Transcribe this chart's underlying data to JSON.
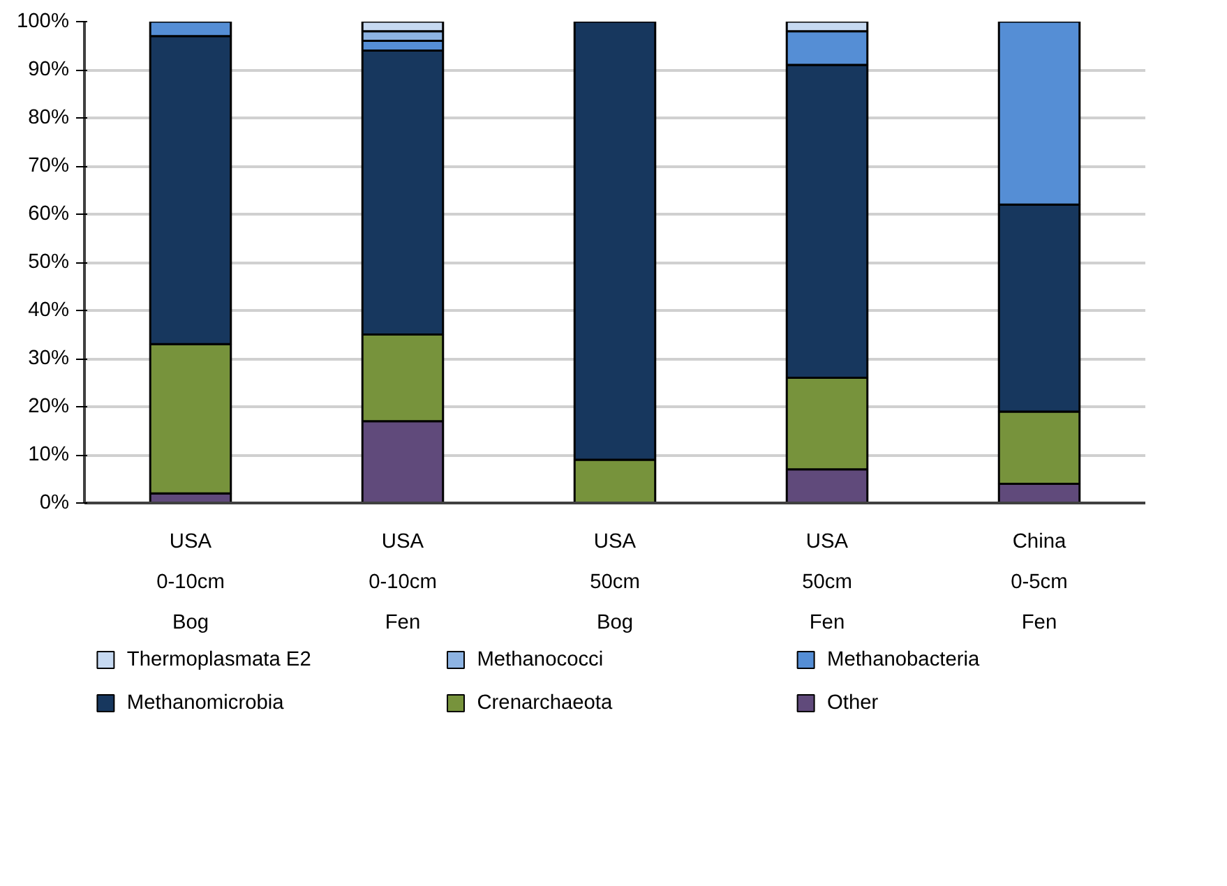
{
  "chart_data": {
    "type": "bar",
    "stacked": true,
    "categories": [
      "USA\n0-10cm\nBog",
      "USA\n0-10cm\nFen",
      "USA\n50cm\nBog",
      "USA\n50cm\nFen",
      "China\n0-5cm\nFen"
    ],
    "series": [
      {
        "name": "Other",
        "color": "#604a7b",
        "values": [
          2,
          17,
          0,
          7,
          4
        ]
      },
      {
        "name": "Crenarchaeota",
        "color": "#77933c",
        "values": [
          31,
          18,
          9,
          19,
          15
        ]
      },
      {
        "name": "Methanomicrobia",
        "color": "#17375e",
        "values": [
          64,
          59,
          91,
          65,
          43
        ]
      },
      {
        "name": "Methanobacteria",
        "color": "#558ed5",
        "values": [
          3,
          2,
          0,
          7,
          38
        ]
      },
      {
        "name": "Methanococci",
        "color": "#8db3e2",
        "values": [
          0,
          2,
          0,
          0,
          0
        ]
      },
      {
        "name": "Thermoplasmata E2",
        "color": "#c6d9f1",
        "values": [
          0,
          2,
          0,
          2,
          0
        ]
      }
    ],
    "ylim": [
      0,
      100
    ],
    "yticks": [
      {
        "value": 0,
        "label": "0%"
      },
      {
        "value": 10,
        "label": "10%"
      },
      {
        "value": 20,
        "label": "20%"
      },
      {
        "value": 30,
        "label": "30%"
      },
      {
        "value": 40,
        "label": "40%"
      },
      {
        "value": 50,
        "label": "50%"
      },
      {
        "value": 60,
        "label": "60%"
      },
      {
        "value": 70,
        "label": "70%"
      },
      {
        "value": 80,
        "label": "80%"
      },
      {
        "value": 90,
        "label": "90%"
      },
      {
        "value": 100,
        "label": "100%"
      }
    ],
    "grid": "y",
    "legend": "bottom"
  }
}
